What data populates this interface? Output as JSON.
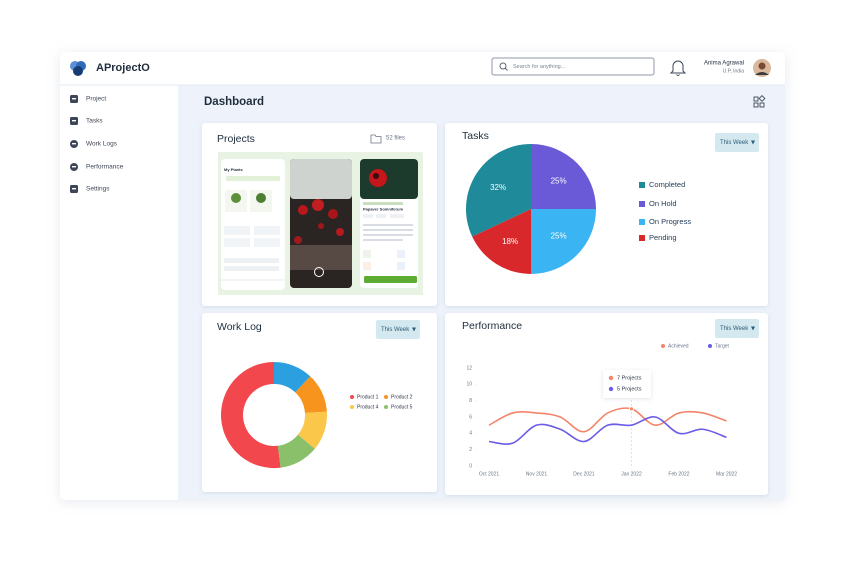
{
  "header": {
    "logo": "AProjectO",
    "search_placeholder": "Search for anything...",
    "user": {
      "name": "Anima Agrawal",
      "location": "U.P, India"
    }
  },
  "sidebar": {
    "items": [
      "Project",
      "Tasks",
      "Work Logs",
      "Performance",
      "Settings"
    ]
  },
  "dashboard": {
    "title": "Dashboard"
  },
  "projects": {
    "title": "Projects",
    "file_count": "52 files",
    "screens": [
      "My Plants",
      "Papaver Somniferum"
    ]
  },
  "tasks": {
    "title": "Tasks",
    "filter": "This Week",
    "chart_data": {
      "type": "pie",
      "categories": [
        "Completed",
        "On Hold",
        "On Progress",
        "Pending"
      ],
      "values": [
        32,
        25,
        25,
        18
      ],
      "value_labels": [
        "32%",
        "25%",
        "25%",
        "18%"
      ],
      "colors": [
        "#1f8a99",
        "#6a5ad8",
        "#3ab4f2",
        "#d8282b"
      ]
    }
  },
  "work_log": {
    "title": "Work Log",
    "filter": "This Week",
    "chart_data": {
      "type": "donut",
      "categories": [
        "Product 1",
        null,
        "Product 2",
        "Product 4",
        "Product 5"
      ],
      "values": [
        52,
        12,
        12,
        12,
        12
      ],
      "colors": [
        "#f2474c",
        "#2b9fe0",
        "#f7941d",
        "#fbc74a",
        "#8bc06a"
      ]
    }
  },
  "performance": {
    "title": "Performance",
    "filter": "This Week",
    "tooltip": [
      "7 Projects",
      "5 Projects"
    ],
    "chart_data": {
      "type": "line",
      "categories": [
        "Oct 2021",
        null,
        "Nov 2021",
        null,
        "Dec 2021",
        null,
        "Jan 2022",
        null,
        "Feb 2022",
        null,
        "Mar 2022"
      ],
      "series": [
        {
          "name": "Achieved",
          "color": "#f4846a",
          "values": [
            5,
            6.5,
            6.5,
            6,
            4.2,
            6.5,
            7,
            5,
            6.5,
            6.5,
            5.5
          ]
        },
        {
          "name": "Target",
          "color": "#6b5ce7",
          "values": [
            3,
            2.8,
            5,
            4.5,
            3,
            5,
            5,
            6,
            4,
            4.5,
            3.5
          ]
        }
      ],
      "ylim": [
        0,
        12
      ],
      "yticks": [
        0,
        2,
        4,
        6,
        8,
        10,
        12
      ],
      "legend": "top-right"
    }
  }
}
